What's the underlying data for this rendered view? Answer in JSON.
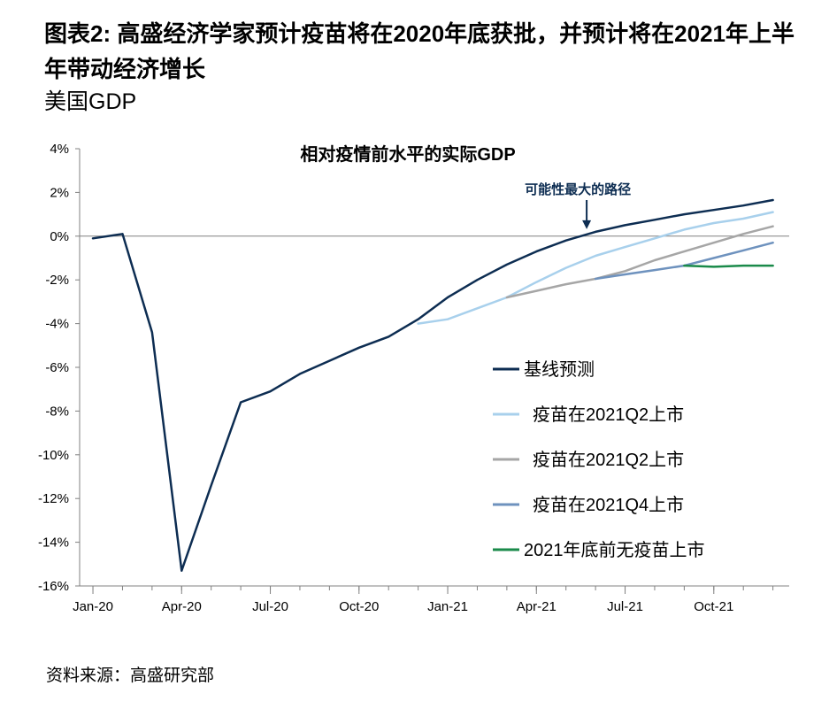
{
  "header": {
    "title": "图表2: 高盛经济学家预计疫苗将在2020年底获批，并预计将在2021年上半年带动经济增长",
    "subtitle": "美国GDP"
  },
  "footer": {
    "source": "资料来源：高盛研究部"
  },
  "colors": {
    "baseline": "#0d2d52",
    "q2_light": "#a8d0ec",
    "q2_gray": "#a6a6a6",
    "q4": "#6e92be",
    "no_vaccine": "#1a8a4a",
    "zero_line": "#808080",
    "axis": "#808080",
    "annotation": "#0d2d52"
  },
  "chart_data": {
    "type": "line",
    "title": "相对疫情前水平的实际GDP",
    "xlabel": "",
    "ylabel": "",
    "ylim": [
      -16,
      4
    ],
    "y_ticks": [
      4,
      2,
      0,
      -2,
      -4,
      -6,
      -8,
      -10,
      -12,
      -14,
      -16
    ],
    "y_tick_labels": [
      "4%",
      "2%",
      "0%",
      "-2%",
      "-4%",
      "-6%",
      "-8%",
      "-10%",
      "-12%",
      "-14%",
      "-16%"
    ],
    "x_tick_labels": [
      "Jan-20",
      "Apr-20",
      "Jul-20",
      "Oct-20",
      "Jan-21",
      "Apr-21",
      "Jul-21",
      "Oct-21"
    ],
    "x_tick_positions": [
      0,
      3,
      6,
      9,
      12,
      15,
      18,
      21
    ],
    "xlim": [
      -0.45,
      23.55
    ],
    "grid": false,
    "legend_position": "bottom-right",
    "annotation": {
      "text": "可能性最大的路径",
      "x": 16.7,
      "y": 0.2
    },
    "series": [
      {
        "name": "基线预测",
        "color_key": "baseline",
        "x": [
          0,
          1,
          2,
          3,
          4,
          5,
          6,
          7,
          8,
          9,
          10,
          11,
          12,
          13,
          14,
          15,
          16,
          17,
          18,
          19,
          20,
          21,
          22,
          23
        ],
        "values": [
          -0.1,
          0.1,
          -4.4,
          -15.3,
          -11.4,
          -7.6,
          -7.1,
          -6.3,
          -5.7,
          -5.1,
          -4.6,
          -3.8,
          -2.8,
          -2.0,
          -1.3,
          -0.7,
          -0.2,
          0.2,
          0.5,
          0.75,
          1.0,
          1.2,
          1.4,
          1.65
        ]
      },
      {
        "name": "疫苗在2021Q2上市",
        "color_key": "q2_light",
        "x": [
          11,
          12,
          13,
          14,
          15,
          16,
          17,
          18,
          19,
          20,
          21,
          22,
          23
        ],
        "values": [
          -4.0,
          -3.8,
          -3.3,
          -2.8,
          -2.1,
          -1.45,
          -0.9,
          -0.5,
          -0.1,
          0.3,
          0.6,
          0.8,
          1.1
        ]
      },
      {
        "name": "疫苗在2021Q2上市",
        "color_key": "q2_gray",
        "x": [
          14,
          15,
          16,
          17,
          18,
          19,
          20,
          21,
          22,
          23
        ],
        "values": [
          -2.8,
          -2.5,
          -2.2,
          -1.95,
          -1.6,
          -1.1,
          -0.7,
          -0.3,
          0.1,
          0.45
        ]
      },
      {
        "name": "疫苗在2021Q4上市",
        "color_key": "q4",
        "x": [
          17,
          18,
          19,
          20,
          21,
          22,
          23
        ],
        "values": [
          -1.95,
          -1.75,
          -1.55,
          -1.35,
          -1.0,
          -0.65,
          -0.3
        ]
      },
      {
        "name": "2021年底前无疫苗上市",
        "color_key": "no_vaccine",
        "x": [
          20,
          21,
          22,
          23
        ],
        "values": [
          -1.35,
          -1.4,
          -1.35,
          -1.35
        ]
      }
    ]
  }
}
